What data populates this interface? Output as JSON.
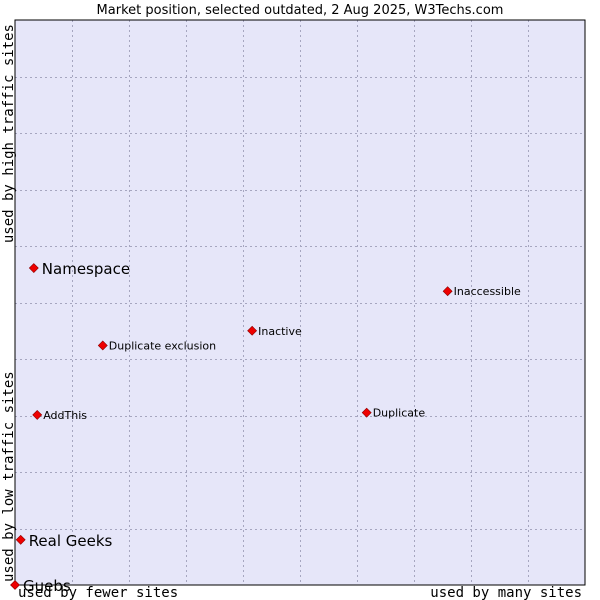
{
  "chart_data": {
    "type": "scatter",
    "title": "Market position, selected outdated, 2 Aug 2025, W3Techs.com",
    "xlabel_left": "used by fewer sites",
    "xlabel_right": "used by many sites",
    "ylabel_bottom": "used by low traffic sites",
    "ylabel_top": "used by high traffic sites",
    "xlim": [
      0,
      100
    ],
    "ylim": [
      0,
      100
    ],
    "grid": true,
    "colors": {
      "plot_background": "#e6e6f9",
      "grid": "#a6a6c0",
      "frame": "#000000",
      "point": "#ee0000"
    },
    "points": [
      {
        "name": "Namespace",
        "x": 3.3,
        "y": 56.1,
        "emphasis": true
      },
      {
        "name": "Inaccessible",
        "x": 75.9,
        "y": 52.0,
        "emphasis": false
      },
      {
        "name": "Inactive",
        "x": 41.6,
        "y": 45.0,
        "emphasis": false
      },
      {
        "name": "Duplicate exclusion",
        "x": 15.4,
        "y": 42.4,
        "emphasis": false
      },
      {
        "name": "AddThis",
        "x": 3.9,
        "y": 30.1,
        "emphasis": false
      },
      {
        "name": "Duplicate",
        "x": 61.7,
        "y": 30.5,
        "emphasis": false
      },
      {
        "name": "Real Geeks",
        "x": 1.0,
        "y": 8.0,
        "emphasis": true
      },
      {
        "name": "Guebs",
        "x": 0.0,
        "y": 0.0,
        "emphasis": true
      }
    ]
  }
}
